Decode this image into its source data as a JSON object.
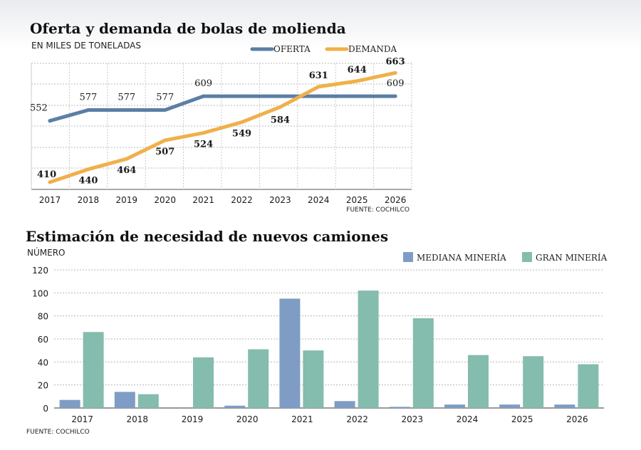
{
  "chart_data": [
    {
      "type": "line",
      "title": "Oferta y demanda de bolas de molienda",
      "subtitle": "EN MILES DE TONELADAS",
      "source": "FUENTE: COCHILCO",
      "x": [
        "2017",
        "2018",
        "2019",
        "2020",
        "2021",
        "2022",
        "2023",
        "2024",
        "2025",
        "2026"
      ],
      "series": [
        {
          "name": "OFERTA",
          "color": "#5b7fa6",
          "values": [
            552,
            577,
            577,
            577,
            609,
            609,
            609,
            609,
            609,
            609
          ],
          "labels": [
            "552",
            "577",
            "577",
            "577",
            "609",
            "",
            "",
            "",
            "",
            "609"
          ]
        },
        {
          "name": "DEMANDA",
          "color": "#f0b04a",
          "values": [
            410,
            440,
            464,
            507,
            524,
            549,
            584,
            631,
            644,
            663
          ],
          "labels": [
            "410",
            "440",
            "464",
            "507",
            "524",
            "549",
            "584",
            "631",
            "644",
            "663"
          ]
        }
      ],
      "ylim": [
        400,
        680
      ],
      "grid": true,
      "legend": "top-right"
    },
    {
      "type": "bar",
      "title": "Estimación de necesidad de nuevos camiones",
      "ylabel": "NÚMERO",
      "source": "FUENTE: COCHILCO",
      "categories": [
        "2017",
        "2018",
        "2019",
        "2020",
        "2021",
        "2022",
        "2023",
        "2024",
        "2025",
        "2026"
      ],
      "series": [
        {
          "name": "MEDIANA MINERÍA",
          "color": "#7f9dc4",
          "values": [
            7,
            14,
            0,
            2,
            95,
            6,
            1,
            3,
            3,
            3
          ]
        },
        {
          "name": "GRAN MINERÍA",
          "color": "#84bcae",
          "values": [
            66,
            12,
            44,
            51,
            50,
            102,
            78,
            46,
            45,
            38
          ]
        }
      ],
      "yticks": [
        "0",
        "20",
        "40",
        "60",
        "80",
        "100",
        "120"
      ],
      "ylim": [
        0,
        120
      ],
      "grid": true,
      "legend": "top-right"
    }
  ]
}
